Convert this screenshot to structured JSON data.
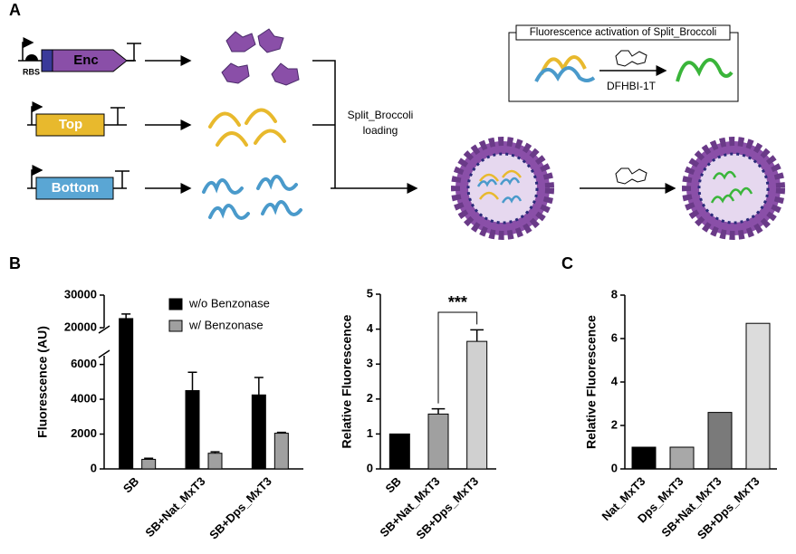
{
  "panel_labels": [
    "A",
    "B",
    "C"
  ],
  "diagram": {
    "rbs": "RBS",
    "genes": [
      "Enc",
      "Top",
      "Bottom"
    ],
    "loading": [
      "Split_Broccoli",
      "loading"
    ],
    "box_title": "Fluorescence activation of Split_Broccoli",
    "dye": "DFHBI-1T"
  },
  "chart_data": [
    {
      "type": "bar",
      "ylabel": "Fluorescence (AU)",
      "categories": [
        "SB",
        "SB+Nat_MxT3",
        "SB+Dps_MxT3"
      ],
      "series": [
        {
          "name": "w/o Benzonase",
          "color": "#000000",
          "values": [
            22800,
            4500,
            4250
          ],
          "errors": [
            1400,
            1050,
            1000
          ]
        },
        {
          "name": "w/ Benzonase",
          "color": "#a0a0a0",
          "values": [
            550,
            900,
            2050
          ],
          "errors": [
            60,
            80,
            50
          ]
        }
      ],
      "ylim": [
        0,
        30000
      ],
      "y_break": [
        6500,
        20000
      ],
      "yticks": [
        0,
        2000,
        4000,
        6000,
        20000,
        30000
      ],
      "legend": "upper right"
    },
    {
      "type": "bar",
      "ylabel": "Relative Fluorescence",
      "categories": [
        "SB",
        "SB+Nat_MxT3",
        "SB+Dps_MxT3"
      ],
      "values": [
        1,
        1.57,
        3.65
      ],
      "errors": [
        null,
        0.15,
        0.33
      ],
      "colors": [
        "#000000",
        "#a0a0a0",
        "#d0d0d0"
      ],
      "ylim": [
        0,
        5
      ],
      "yticks": [
        0,
        1,
        2,
        3,
        4,
        5
      ],
      "significance": {
        "label": "***",
        "from": 1,
        "to": 2
      }
    },
    {
      "type": "bar",
      "ylabel": "Relative Fluorescence",
      "categories": [
        "Nat_MxT3",
        "Dps_MxT3",
        "SB+Nat_MxT3",
        "SB+Dps_MxT3"
      ],
      "values": [
        1,
        1,
        2.6,
        6.7
      ],
      "colors": [
        "#000000",
        "#a8a8a8",
        "#7a7a7a",
        "#dcdcdc"
      ],
      "ylim": [
        0,
        8
      ],
      "yticks": [
        0,
        2,
        4,
        6,
        8
      ]
    }
  ]
}
